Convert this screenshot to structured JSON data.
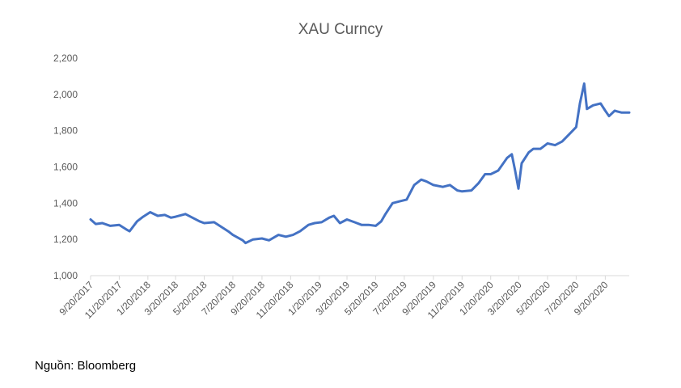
{
  "source_note": "Nguồn: Bloomberg",
  "chart_data": {
    "type": "line",
    "title": "XAU Curncy",
    "xlabel": "",
    "ylabel": "",
    "ylim": [
      1000,
      2200
    ],
    "yticks": [
      1000,
      1200,
      1400,
      1600,
      1800,
      2000,
      2200
    ],
    "ytick_labels": [
      "1,000",
      "1,200",
      "1,400",
      "1,600",
      "1,800",
      "2,000",
      "2,200"
    ],
    "xlim": [
      "9/20/2017",
      "11/10/2020"
    ],
    "xtick_labels": [
      "9/20/2017",
      "11/20/2017",
      "1/20/2018",
      "3/20/2018",
      "5/20/2018",
      "7/20/2018",
      "9/20/2018",
      "11/20/2018",
      "1/20/2019",
      "3/20/2019",
      "5/20/2019",
      "7/20/2019",
      "9/20/2019",
      "11/20/2019",
      "1/20/2020",
      "3/20/2020",
      "5/20/2020",
      "7/20/2020",
      "9/20/2020"
    ],
    "grid": false,
    "legend": "none",
    "series_color": "#4472C4",
    "series": [
      {
        "x": [
          "9/20/2017",
          "10/1/2017",
          "10/15/2017",
          "11/1/2017",
          "11/20/2017",
          "12/5/2017",
          "12/12/2017",
          "12/28/2017",
          "1/10/2018",
          "1/25/2018",
          "2/10/2018",
          "2/25/2018",
          "3/10/2018",
          "3/20/2018",
          "4/10/2018",
          "4/25/2018",
          "5/10/2018",
          "5/20/2018",
          "6/10/2018",
          "6/25/2018",
          "7/10/2018",
          "7/20/2018",
          "8/10/2018",
          "8/16/2018",
          "9/1/2018",
          "9/20/2018",
          "10/5/2018",
          "10/25/2018",
          "11/10/2018",
          "11/25/2018",
          "12/10/2018",
          "12/28/2018",
          "1/10/2019",
          "1/25/2019",
          "2/10/2019",
          "2/20/2019",
          "3/5/2019",
          "3/20/2019",
          "4/5/2019",
          "4/20/2019",
          "5/5/2019",
          "5/20/2019",
          "6/1/2019",
          "6/10/2019",
          "6/25/2019",
          "7/10/2019",
          "7/25/2019",
          "8/10/2019",
          "8/25/2019",
          "9/5/2019",
          "9/20/2019",
          "10/10/2019",
          "10/25/2019",
          "11/10/2019",
          "11/20/2019",
          "12/10/2019",
          "12/25/2019",
          "1/8/2020",
          "1/20/2020",
          "2/5/2020",
          "2/24/2020",
          "3/5/2020",
          "3/12/2020",
          "3/19/2020",
          "3/26/2020",
          "4/10/2020",
          "4/20/2020",
          "5/5/2020",
          "5/20/2020",
          "6/5/2020",
          "6/20/2020",
          "7/5/2020",
          "7/20/2020",
          "7/28/2020",
          "8/6/2020",
          "8/12/2020",
          "8/25/2020",
          "9/10/2020",
          "9/20/2020",
          "9/28/2020",
          "10/10/2020",
          "10/25/2020",
          "11/10/2020"
        ],
        "y": [
          1310,
          1285,
          1290,
          1275,
          1280,
          1255,
          1245,
          1300,
          1325,
          1350,
          1330,
          1335,
          1320,
          1325,
          1340,
          1320,
          1300,
          1290,
          1295,
          1270,
          1245,
          1225,
          1195,
          1180,
          1200,
          1205,
          1195,
          1225,
          1215,
          1225,
          1245,
          1280,
          1290,
          1295,
          1320,
          1330,
          1290,
          1310,
          1295,
          1280,
          1280,
          1275,
          1300,
          1340,
          1400,
          1410,
          1420,
          1500,
          1530,
          1520,
          1500,
          1490,
          1500,
          1470,
          1465,
          1470,
          1510,
          1560,
          1560,
          1580,
          1650,
          1670,
          1580,
          1480,
          1620,
          1680,
          1700,
          1700,
          1730,
          1720,
          1740,
          1780,
          1820,
          1950,
          2060,
          1920,
          1940,
          1950,
          1910,
          1880,
          1910,
          1900,
          1900
        ]
      }
    ]
  }
}
